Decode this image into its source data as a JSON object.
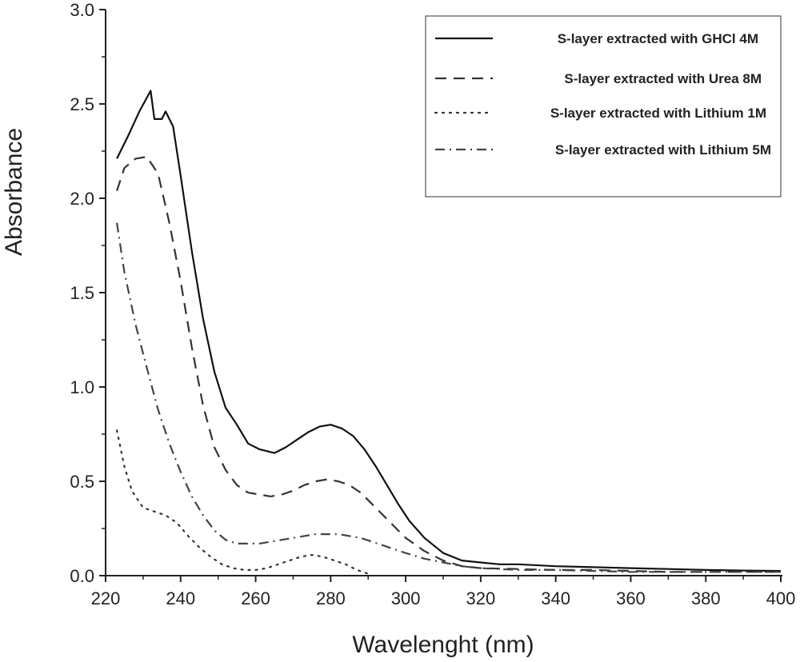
{
  "chart_data": {
    "type": "line",
    "title": "",
    "xlabel": "Wavelenght (nm)",
    "ylabel": "Absorbance",
    "xlim": [
      220,
      400
    ],
    "ylim": [
      0.0,
      3.0
    ],
    "xticks": [
      "220",
      "240",
      "260",
      "280",
      "300",
      "320",
      "340",
      "360",
      "380",
      "400"
    ],
    "yticks": [
      "0.0",
      "0.5",
      "1.0",
      "1.5",
      "2.0",
      "2.5",
      "3.0"
    ],
    "grid": false,
    "legend_position": "top-right",
    "series": [
      {
        "name": "S-layer extracted with GHCl 4M",
        "style": "solid",
        "color": "#111111",
        "x": [
          223,
          226,
          229,
          232,
          233,
          235,
          236,
          238,
          240,
          243,
          246,
          249,
          252,
          255,
          258,
          261,
          265,
          268,
          271,
          274,
          277,
          280,
          283,
          286,
          289,
          292,
          295,
          298,
          301,
          305,
          310,
          315,
          320,
          325,
          330,
          340,
          350,
          360,
          370,
          380,
          390,
          400
        ],
        "y": [
          2.21,
          2.33,
          2.46,
          2.57,
          2.42,
          2.42,
          2.46,
          2.38,
          2.12,
          1.72,
          1.36,
          1.08,
          0.89,
          0.8,
          0.7,
          0.67,
          0.65,
          0.68,
          0.72,
          0.76,
          0.79,
          0.8,
          0.78,
          0.74,
          0.67,
          0.58,
          0.48,
          0.38,
          0.29,
          0.2,
          0.12,
          0.08,
          0.07,
          0.06,
          0.06,
          0.05,
          0.045,
          0.04,
          0.035,
          0.03,
          0.027,
          0.025
        ]
      },
      {
        "name": "S-layer extracted with Urea 8M",
        "style": "dashed",
        "color": "#333333",
        "x": [
          223,
          225,
          228,
          231,
          234,
          237,
          240,
          243,
          246,
          249,
          252,
          255,
          258,
          261,
          264,
          267,
          270,
          273,
          276,
          279,
          282,
          285,
          288,
          291,
          294,
          297,
          300,
          305,
          310,
          315,
          320,
          330,
          340,
          350,
          360,
          370,
          380,
          390,
          400
        ],
        "y": [
          2.04,
          2.16,
          2.21,
          2.22,
          2.13,
          1.87,
          1.56,
          1.21,
          0.9,
          0.68,
          0.56,
          0.48,
          0.44,
          0.43,
          0.42,
          0.43,
          0.45,
          0.48,
          0.5,
          0.51,
          0.5,
          0.48,
          0.44,
          0.38,
          0.32,
          0.26,
          0.2,
          0.13,
          0.08,
          0.05,
          0.04,
          0.035,
          0.03,
          0.03,
          0.025,
          0.02,
          0.02,
          0.02,
          0.02
        ]
      },
      {
        "name": "S-layer extracted with Lithium 1M",
        "style": "dotted",
        "color": "#333333",
        "x": [
          223,
          225,
          227,
          230,
          233,
          236,
          239,
          242,
          245,
          248,
          251,
          254,
          257,
          260,
          263,
          266,
          269,
          272,
          275,
          278,
          281,
          284,
          287,
          290,
          291
        ],
        "y": [
          0.77,
          0.58,
          0.45,
          0.36,
          0.34,
          0.32,
          0.28,
          0.21,
          0.15,
          0.1,
          0.06,
          0.04,
          0.03,
          0.03,
          0.04,
          0.06,
          0.08,
          0.1,
          0.11,
          0.1,
          0.08,
          0.06,
          0.03,
          0.01,
          0.0
        ]
      },
      {
        "name": "S-layer extracted with Lithium 5M",
        "style": "dash-dot",
        "color": "#444444",
        "x": [
          223,
          225,
          228,
          231,
          234,
          237,
          240,
          243,
          246,
          249,
          252,
          255,
          258,
          261,
          264,
          267,
          270,
          273,
          276,
          279,
          282,
          285,
          288,
          291,
          294,
          297,
          300,
          305,
          310,
          315,
          320,
          330,
          340,
          350,
          360,
          370,
          380,
          390,
          400
        ],
        "y": [
          1.87,
          1.61,
          1.33,
          1.1,
          0.88,
          0.7,
          0.55,
          0.42,
          0.32,
          0.24,
          0.19,
          0.17,
          0.17,
          0.17,
          0.18,
          0.19,
          0.2,
          0.21,
          0.22,
          0.22,
          0.22,
          0.21,
          0.2,
          0.18,
          0.16,
          0.14,
          0.12,
          0.09,
          0.07,
          0.05,
          0.04,
          0.03,
          0.03,
          0.025,
          0.02,
          0.02,
          0.02,
          0.02,
          0.02
        ]
      }
    ]
  }
}
